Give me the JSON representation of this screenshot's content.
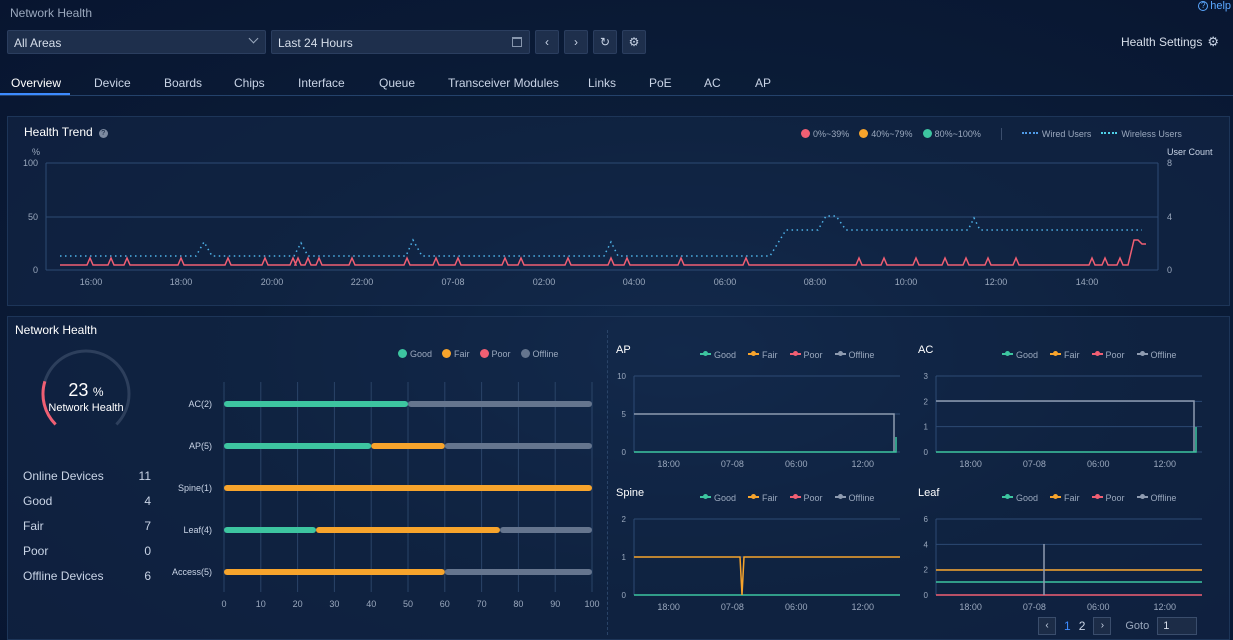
{
  "app": {
    "title": "Network Health",
    "help_label": "help"
  },
  "toolbar": {
    "area_select": "All Areas",
    "time_range": "Last 24 Hours",
    "prev_icon": "chevron-left-icon",
    "next_icon": "chevron-right-icon",
    "refresh_icon": "refresh-icon",
    "settings_icon": "gear-icon",
    "health_settings": "Health Settings"
  },
  "tabs": [
    {
      "label": "Overview",
      "active": true
    },
    {
      "label": "Device"
    },
    {
      "label": "Boards"
    },
    {
      "label": "Chips"
    },
    {
      "label": "Interface"
    },
    {
      "label": "Queue"
    },
    {
      "label": "Transceiver Modules"
    },
    {
      "label": "Links"
    },
    {
      "label": "PoE"
    },
    {
      "label": "AC"
    },
    {
      "label": "AP"
    }
  ],
  "health_trend": {
    "title": "Health Trend",
    "legend": [
      {
        "label": "0%~39%",
        "color": "#f05f73"
      },
      {
        "label": "40%~79%",
        "color": "#f7a42c"
      },
      {
        "label": "80%~100%",
        "color": "#3dc5a0"
      }
    ],
    "user_legend": [
      {
        "label": "Wired Users",
        "color": "#4f9be8"
      },
      {
        "label": "Wireless Users",
        "color": "#4fd1e8"
      }
    ],
    "y_left_unit": "%",
    "y_right_unit": "User Count",
    "y_left_ticks": [
      "100",
      "50",
      "0"
    ],
    "y_right_ticks": [
      "8",
      "4",
      "0"
    ],
    "x_ticks": [
      "16:00",
      "18:00",
      "20:00",
      "22:00",
      "07-08",
      "02:00",
      "04:00",
      "06:00",
      "08:00",
      "10:00",
      "12:00",
      "14:00"
    ]
  },
  "network_health": {
    "title": "Network Health",
    "gauge_value": "23",
    "gauge_unit": "%",
    "gauge_label": "Network Health",
    "gauge_fraction": 0.23,
    "stats": [
      {
        "label": "Online Devices",
        "value": "11"
      },
      {
        "label": "Good",
        "value": "4"
      },
      {
        "label": "Fair",
        "value": "7"
      },
      {
        "label": "Poor",
        "value": "0"
      },
      {
        "label": "Offline Devices",
        "value": "6"
      }
    ],
    "legend": [
      {
        "label": "Good",
        "color": "#3dc5a0"
      },
      {
        "label": "Fair",
        "color": "#f7a42c"
      },
      {
        "label": "Poor",
        "color": "#f05f73"
      },
      {
        "label": "Offline",
        "color": "#65758e"
      }
    ],
    "bars": {
      "categories": [
        "AC(2)",
        "AP(5)",
        "Spine(1)",
        "Leaf(4)",
        "Access(5)"
      ],
      "x_ticks": [
        "0",
        "10",
        "20",
        "30",
        "40",
        "50",
        "60",
        "70",
        "80",
        "90",
        "100"
      ],
      "series": [
        {
          "name": "Good",
          "values": [
            50,
            40,
            0,
            25,
            0
          ]
        },
        {
          "name": "Fair",
          "values": [
            0,
            20,
            100,
            50,
            60
          ]
        },
        {
          "name": "Poor",
          "values": [
            0,
            0,
            0,
            0,
            0
          ]
        },
        {
          "name": "Offline",
          "values": [
            50,
            40,
            0,
            25,
            40
          ]
        }
      ]
    }
  },
  "mini_legend": [
    "Good",
    "Fair",
    "Poor",
    "Offline"
  ],
  "mini_charts": [
    {
      "title": "AP",
      "y_ticks": [
        "10",
        "5",
        "0"
      ],
      "x_ticks": [
        "18:00",
        "07-08",
        "06:00",
        "12:00"
      ]
    },
    {
      "title": "AC",
      "y_ticks": [
        "3",
        "2",
        "1",
        "0"
      ],
      "x_ticks": [
        "18:00",
        "07-08",
        "06:00",
        "12:00"
      ]
    },
    {
      "title": "Spine",
      "y_ticks": [
        "2",
        "1",
        "0"
      ],
      "x_ticks": [
        "18:00",
        "07-08",
        "06:00",
        "12:00"
      ]
    },
    {
      "title": "Leaf",
      "y_ticks": [
        "6",
        "4",
        "2",
        "0"
      ],
      "x_ticks": [
        "18:00",
        "07-08",
        "06:00",
        "12:00"
      ]
    }
  ],
  "pagination": {
    "pages": [
      "1",
      "2"
    ],
    "current": "1",
    "goto_label": "Goto",
    "goto_value": "1"
  }
}
